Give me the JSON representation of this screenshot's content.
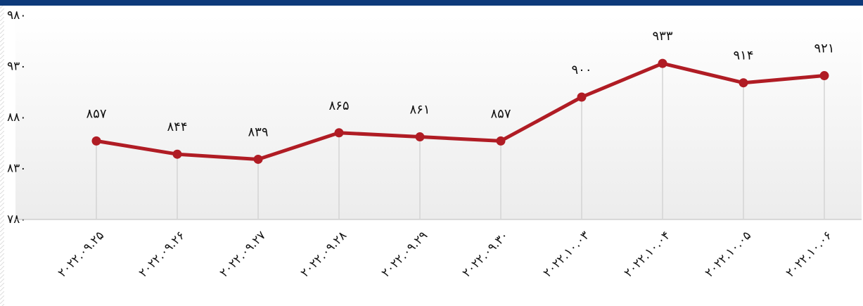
{
  "chart_data": {
    "type": "line",
    "categories": [
      "۲۰۲۲.۰۹.۲۵",
      "۲۰۲۲.۰۹.۲۶",
      "۲۰۲۲.۰۹.۲۷",
      "۲۰۲۲.۰۹.۲۸",
      "۲۰۲۲.۰۹.۲۹",
      "۲۰۲۲.۰۹.۳۰",
      "۲۰۲۲.۱۰.۰۳",
      "۲۰۲۲.۱۰.۰۴",
      "۲۰۲۲.۱۰.۰۵",
      "۲۰۲۲.۱۰.۰۶"
    ],
    "values": [
      857,
      844,
      839,
      865,
      861,
      857,
      900,
      933,
      914,
      921
    ],
    "value_labels": [
      "۸۵۷",
      "۸۴۴",
      "۸۳۹",
      "۸۶۵",
      "۸۶۱",
      "۸۵۷",
      "۹۰۰",
      "۹۳۳",
      "۹۱۴",
      "۹۲۱"
    ],
    "color": "#b01c24",
    "ylim": [
      780,
      980
    ],
    "yticks": [
      {
        "value": 780,
        "label": "۷۸۰"
      },
      {
        "value": 830,
        "label": "۸۳۰"
      },
      {
        "value": 880,
        "label": "۸۸۰"
      },
      {
        "value": 930,
        "label": "۹۳۰"
      },
      {
        "value": 980,
        "label": "۹۸۰"
      }
    ]
  }
}
